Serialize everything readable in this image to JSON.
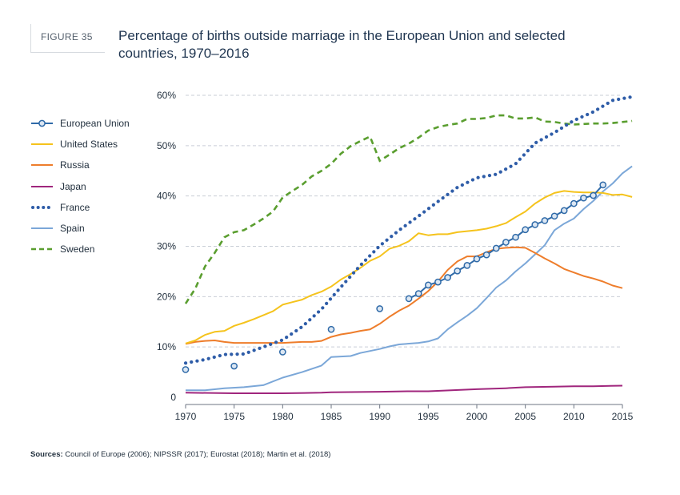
{
  "figure": {
    "label": "FIGURE 35",
    "title": "Percentage of births outside marriage in the European Union and selected\ncountries, 1970–2016"
  },
  "sources": {
    "prefix": "Sources:",
    "text": " Council of Europe (2006); NIPSSR (2017); Eurostat (2018); Martin et al. (2018)"
  },
  "chart_data": {
    "type": "line",
    "title": "Percentage of births outside marriage in the European Union and selected countries, 1970–2016",
    "xlabel": "",
    "ylabel": "",
    "xlim": [
      1970,
      2015
    ],
    "ylim": [
      0,
      60
    ],
    "grid": true,
    "legend_position": "left",
    "x_ticks": [
      "1970",
      "1975",
      "1980",
      "1985",
      "1990",
      "1995",
      "2000",
      "2005",
      "2010",
      "2015"
    ],
    "y_ticks": [
      "0",
      "10%",
      "20%",
      "30%",
      "40%",
      "50%",
      "60%"
    ],
    "series": [
      {
        "name": "European Union",
        "color": "#2f6aa8",
        "style": "line-circle",
        "sparse_points": [
          [
            1970,
            5.5
          ],
          [
            1975,
            6.2
          ],
          [
            1980,
            9.0
          ],
          [
            1985,
            13.5
          ],
          [
            1990,
            17.6
          ]
        ],
        "points": [
          [
            1993,
            19.6
          ],
          [
            1994,
            20.6
          ],
          [
            1995,
            22.3
          ],
          [
            1996,
            22.9
          ],
          [
            1997,
            23.8
          ],
          [
            1998,
            25.1
          ],
          [
            1999,
            26.2
          ],
          [
            2000,
            27.5
          ],
          [
            2001,
            28.3
          ],
          [
            2002,
            29.6
          ],
          [
            2003,
            30.8
          ],
          [
            2004,
            31.8
          ],
          [
            2005,
            33.3
          ],
          [
            2006,
            34.3
          ],
          [
            2007,
            35.1
          ],
          [
            2008,
            36.0
          ],
          [
            2009,
            37.1
          ],
          [
            2010,
            38.5
          ],
          [
            2011,
            39.6
          ],
          [
            2012,
            40.1
          ],
          [
            2013,
            42.2
          ]
        ]
      },
      {
        "name": "United States",
        "color": "#f5c31c",
        "style": "solid",
        "points": [
          [
            1970,
            10.7
          ],
          [
            1971,
            11.3
          ],
          [
            1972,
            12.4
          ],
          [
            1973,
            13.0
          ],
          [
            1974,
            13.2
          ],
          [
            1975,
            14.2
          ],
          [
            1976,
            14.8
          ],
          [
            1977,
            15.5
          ],
          [
            1978,
            16.3
          ],
          [
            1979,
            17.1
          ],
          [
            1980,
            18.4
          ],
          [
            1981,
            18.9
          ],
          [
            1982,
            19.4
          ],
          [
            1983,
            20.3
          ],
          [
            1984,
            21.0
          ],
          [
            1985,
            22.0
          ],
          [
            1986,
            23.4
          ],
          [
            1987,
            24.5
          ],
          [
            1988,
            25.7
          ],
          [
            1989,
            27.1
          ],
          [
            1990,
            28.0
          ],
          [
            1991,
            29.5
          ],
          [
            1992,
            30.1
          ],
          [
            1993,
            31.0
          ],
          [
            1994,
            32.6
          ],
          [
            1995,
            32.2
          ],
          [
            1996,
            32.4
          ],
          [
            1997,
            32.4
          ],
          [
            1998,
            32.8
          ],
          [
            1999,
            33.0
          ],
          [
            2000,
            33.2
          ],
          [
            2001,
            33.5
          ],
          [
            2002,
            34.0
          ],
          [
            2003,
            34.6
          ],
          [
            2004,
            35.8
          ],
          [
            2005,
            36.9
          ],
          [
            2006,
            38.5
          ],
          [
            2007,
            39.7
          ],
          [
            2008,
            40.6
          ],
          [
            2009,
            41.0
          ],
          [
            2010,
            40.8
          ],
          [
            2011,
            40.7
          ],
          [
            2012,
            40.7
          ],
          [
            2013,
            40.6
          ],
          [
            2014,
            40.2
          ],
          [
            2015,
            40.3
          ],
          [
            2016,
            39.8
          ]
        ]
      },
      {
        "name": "Russia",
        "color": "#ee7d2b",
        "style": "solid",
        "points": [
          [
            1970,
            10.6
          ],
          [
            1971,
            11.0
          ],
          [
            1972,
            11.2
          ],
          [
            1973,
            11.3
          ],
          [
            1974,
            11.0
          ],
          [
            1975,
            10.8
          ],
          [
            1976,
            10.8
          ],
          [
            1977,
            10.8
          ],
          [
            1978,
            10.8
          ],
          [
            1979,
            10.8
          ],
          [
            1980,
            10.8
          ],
          [
            1981,
            10.9
          ],
          [
            1982,
            11.0
          ],
          [
            1983,
            11.0
          ],
          [
            1984,
            11.2
          ],
          [
            1985,
            12.0
          ],
          [
            1986,
            12.5
          ],
          [
            1987,
            12.8
          ],
          [
            1988,
            13.2
          ],
          [
            1989,
            13.5
          ],
          [
            1990,
            14.6
          ],
          [
            1991,
            16.0
          ],
          [
            1992,
            17.2
          ],
          [
            1993,
            18.2
          ],
          [
            1994,
            19.6
          ],
          [
            1995,
            21.1
          ],
          [
            1996,
            23.0
          ],
          [
            1997,
            25.3
          ],
          [
            1998,
            27.0
          ],
          [
            1999,
            28.0
          ],
          [
            2000,
            28.0
          ],
          [
            2001,
            28.8
          ],
          [
            2002,
            29.5
          ],
          [
            2003,
            29.7
          ],
          [
            2004,
            29.8
          ],
          [
            2005,
            29.7
          ],
          [
            2006,
            28.7
          ],
          [
            2007,
            27.6
          ],
          [
            2008,
            26.6
          ],
          [
            2009,
            25.5
          ],
          [
            2010,
            24.8
          ],
          [
            2011,
            24.1
          ],
          [
            2012,
            23.6
          ],
          [
            2013,
            23.0
          ],
          [
            2014,
            22.2
          ],
          [
            2015,
            21.7
          ]
        ]
      },
      {
        "name": "Japan",
        "color": "#a0267d",
        "style": "solid",
        "points": [
          [
            1970,
            0.9
          ],
          [
            1975,
            0.8
          ],
          [
            1980,
            0.8
          ],
          [
            1984,
            0.9
          ],
          [
            1985,
            1.0
          ],
          [
            1990,
            1.1
          ],
          [
            1993,
            1.2
          ],
          [
            1995,
            1.2
          ],
          [
            2000,
            1.6
          ],
          [
            2003,
            1.8
          ],
          [
            2005,
            2.0
          ],
          [
            2008,
            2.1
          ],
          [
            2010,
            2.2
          ],
          [
            2012,
            2.2
          ],
          [
            2015,
            2.3
          ]
        ]
      },
      {
        "name": "France",
        "color": "#2f5da8",
        "style": "dotted",
        "points": [
          [
            1970,
            6.8
          ],
          [
            1972,
            7.5
          ],
          [
            1974,
            8.5
          ],
          [
            1976,
            8.6
          ],
          [
            1978,
            10.0
          ],
          [
            1980,
            11.4
          ],
          [
            1982,
            14.0
          ],
          [
            1984,
            17.5
          ],
          [
            1986,
            21.9
          ],
          [
            1988,
            26.2
          ],
          [
            1990,
            30.1
          ],
          [
            1992,
            33.2
          ],
          [
            1994,
            36.0
          ],
          [
            1996,
            38.9
          ],
          [
            1998,
            41.7
          ],
          [
            2000,
            43.6
          ],
          [
            2002,
            44.3
          ],
          [
            2004,
            46.4
          ],
          [
            2006,
            50.5
          ],
          [
            2008,
            52.6
          ],
          [
            2010,
            55.0
          ],
          [
            2012,
            56.7
          ],
          [
            2014,
            59.0
          ],
          [
            2016,
            59.7
          ]
        ]
      },
      {
        "name": "Spain",
        "color": "#7ba7d8",
        "style": "solid",
        "points": [
          [
            1970,
            1.4
          ],
          [
            1972,
            1.4
          ],
          [
            1974,
            1.8
          ],
          [
            1976,
            2.0
          ],
          [
            1978,
            2.4
          ],
          [
            1980,
            3.9
          ],
          [
            1982,
            5.0
          ],
          [
            1984,
            6.3
          ],
          [
            1985,
            8.0
          ],
          [
            1987,
            8.2
          ],
          [
            1988,
            8.8
          ],
          [
            1990,
            9.6
          ],
          [
            1991,
            10.1
          ],
          [
            1992,
            10.5
          ],
          [
            1994,
            10.8
          ],
          [
            1995,
            11.1
          ],
          [
            1996,
            11.7
          ],
          [
            1997,
            13.5
          ],
          [
            1998,
            14.9
          ],
          [
            1999,
            16.2
          ],
          [
            2000,
            17.7
          ],
          [
            2001,
            19.7
          ],
          [
            2002,
            21.8
          ],
          [
            2003,
            23.2
          ],
          [
            2004,
            25.0
          ],
          [
            2005,
            26.6
          ],
          [
            2006,
            28.4
          ],
          [
            2007,
            30.2
          ],
          [
            2008,
            33.2
          ],
          [
            2009,
            34.5
          ],
          [
            2010,
            35.5
          ],
          [
            2011,
            37.4
          ],
          [
            2012,
            39.0
          ],
          [
            2013,
            40.9
          ],
          [
            2014,
            42.5
          ],
          [
            2015,
            44.5
          ],
          [
            2016,
            45.9
          ]
        ]
      },
      {
        "name": "Sweden",
        "color": "#5a9e2f",
        "style": "dashed",
        "points": [
          [
            1970,
            18.6
          ],
          [
            1971,
            21.6
          ],
          [
            1972,
            26.0
          ],
          [
            1973,
            28.7
          ],
          [
            1974,
            31.8
          ],
          [
            1975,
            32.8
          ],
          [
            1976,
            33.2
          ],
          [
            1977,
            34.3
          ],
          [
            1978,
            35.5
          ],
          [
            1979,
            36.9
          ],
          [
            1980,
            39.7
          ],
          [
            1981,
            41.0
          ],
          [
            1982,
            42.2
          ],
          [
            1983,
            43.9
          ],
          [
            1984,
            45.0
          ],
          [
            1985,
            46.4
          ],
          [
            1986,
            48.4
          ],
          [
            1987,
            49.9
          ],
          [
            1988,
            50.9
          ],
          [
            1989,
            51.8
          ],
          [
            1990,
            47.0
          ],
          [
            1991,
            48.2
          ],
          [
            1992,
            49.5
          ],
          [
            1993,
            50.4
          ],
          [
            1994,
            51.6
          ],
          [
            1995,
            53.0
          ],
          [
            1996,
            53.7
          ],
          [
            1997,
            54.1
          ],
          [
            1998,
            54.4
          ],
          [
            1999,
            55.3
          ],
          [
            2000,
            55.3
          ],
          [
            2001,
            55.5
          ],
          [
            2002,
            56.0
          ],
          [
            2003,
            56.0
          ],
          [
            2004,
            55.4
          ],
          [
            2005,
            55.4
          ],
          [
            2006,
            55.6
          ],
          [
            2007,
            54.8
          ],
          [
            2008,
            54.7
          ],
          [
            2009,
            54.4
          ],
          [
            2010,
            54.2
          ],
          [
            2011,
            54.3
          ],
          [
            2012,
            54.4
          ],
          [
            2013,
            54.4
          ],
          [
            2014,
            54.5
          ],
          [
            2015,
            54.7
          ],
          [
            2016,
            54.9
          ]
        ]
      }
    ]
  }
}
